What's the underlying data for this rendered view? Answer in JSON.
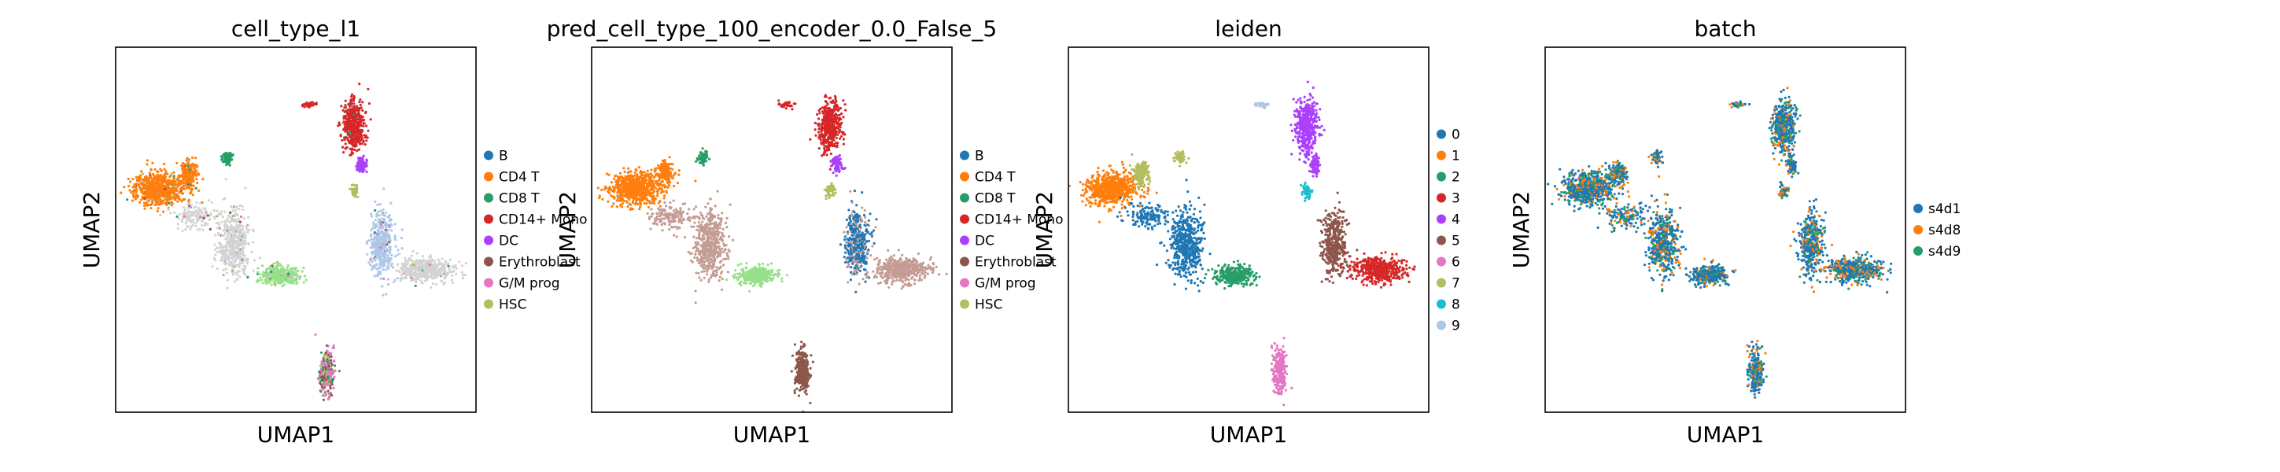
{
  "chart_data": [
    {
      "type": "scatter",
      "title": "cell_type_l1",
      "xlabel": "UMAP1",
      "ylabel": "UMAP2",
      "grid": false,
      "legend_position": "right",
      "legend": [
        {
          "label": "B",
          "color": "#1f77b4"
        },
        {
          "label": "CD4 T",
          "color": "#ff7f0e"
        },
        {
          "label": "CD8 T",
          "color": "#279e68"
        },
        {
          "label": "CD14+ Mono",
          "color": "#d62728"
        },
        {
          "label": "DC",
          "color": "#aa40fc"
        },
        {
          "label": "Erythroblast",
          "color": "#8c564b"
        },
        {
          "label": "G/M prog",
          "color": "#e377c2"
        },
        {
          "label": "HSC",
          "color": "#b5bd61"
        }
      ]
    },
    {
      "type": "scatter",
      "title": "pred_cell_type_100_encoder_0.0_False_5",
      "xlabel": "UMAP1",
      "ylabel": "UMAP2",
      "grid": false,
      "legend_position": "right",
      "legend": [
        {
          "label": "B",
          "color": "#1f77b4"
        },
        {
          "label": "CD4 T",
          "color": "#ff7f0e"
        },
        {
          "label": "CD8 T",
          "color": "#279e68"
        },
        {
          "label": "CD14+ Mono",
          "color": "#d62728"
        },
        {
          "label": "DC",
          "color": "#aa40fc"
        },
        {
          "label": "Erythroblast",
          "color": "#8c564b"
        },
        {
          "label": "G/M prog",
          "color": "#e377c2"
        },
        {
          "label": "HSC",
          "color": "#b5bd61"
        }
      ]
    },
    {
      "type": "scatter",
      "title": "leiden",
      "xlabel": "UMAP1",
      "ylabel": "UMAP2",
      "grid": false,
      "legend_position": "right",
      "legend": [
        {
          "label": "0",
          "color": "#1f77b4"
        },
        {
          "label": "1",
          "color": "#ff7f0e"
        },
        {
          "label": "2",
          "color": "#279e68"
        },
        {
          "label": "3",
          "color": "#d62728"
        },
        {
          "label": "4",
          "color": "#aa40fc"
        },
        {
          "label": "5",
          "color": "#8c564b"
        },
        {
          "label": "6",
          "color": "#e377c2"
        },
        {
          "label": "7",
          "color": "#b5bd61"
        },
        {
          "label": "8",
          "color": "#17becf"
        },
        {
          "label": "9",
          "color": "#aec7e8"
        }
      ]
    },
    {
      "type": "scatter",
      "title": "batch",
      "xlabel": "UMAP1",
      "ylabel": "UMAP2",
      "grid": false,
      "legend_position": "right",
      "legend": [
        {
          "label": "s4d1",
          "color": "#1f77b4"
        },
        {
          "label": "s4d8",
          "color": "#ff7f0e"
        },
        {
          "label": "s4d9",
          "color": "#279e68"
        }
      ]
    }
  ]
}
